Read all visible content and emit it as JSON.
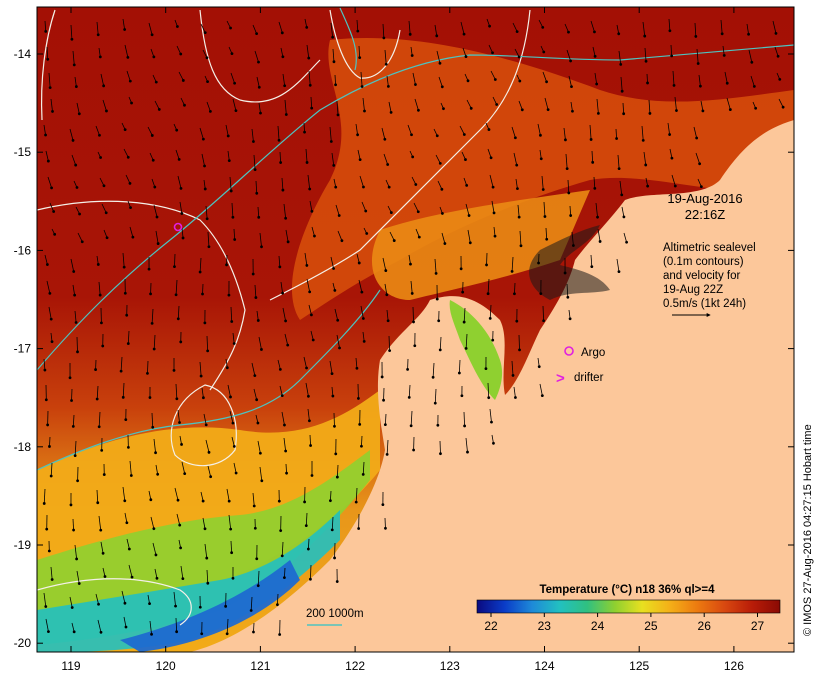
{
  "map": {
    "lon_ticks": [
      "119",
      "120",
      "121",
      "122",
      "123",
      "124",
      "125",
      "126"
    ],
    "lat_ticks": [
      "-14",
      "-15",
      "-16",
      "-17",
      "-18",
      "-19",
      "-20"
    ],
    "colors": {
      "land": "#fcc79a",
      "frame": "#000000",
      "contour": "#f4f0e8",
      "isobath": "#4ec3c0",
      "argo": "#e020e0",
      "drifter": "#e020e0",
      "sst_hot": "#a31005",
      "sst_warm": "#e05a10",
      "sst_mid": "#f2ab18",
      "sst_cool": "#8fd030",
      "sst_cold": "#1e8ad8"
    }
  },
  "annotations": {
    "date": "19-Aug-2016",
    "time": "22:16Z",
    "altimetry_lines": [
      "Altimetric sealevel",
      "(0.1m contours)",
      "and velocity for",
      "19-Aug 22Z",
      "0.5m/s (1kt 24h)"
    ],
    "argo_label": "Argo",
    "drifter_label": "drifter",
    "drifter_symbol": ">",
    "depth_label": "200  1000m",
    "copyright": "© IMOS 27-Aug-2016 04:27:15 Hobart time"
  },
  "colorbar": {
    "title": "Temperature (°C) n18 36% ql>=4",
    "ticks": [
      "22",
      "23",
      "24",
      "25",
      "26",
      "27"
    ],
    "stops": [
      "#0a0a80",
      "#0a3cc8",
      "#1e8ad8",
      "#22c0c0",
      "#30c080",
      "#8fd030",
      "#e8e020",
      "#f4b018",
      "#ec7a10",
      "#d84810",
      "#b81c08",
      "#8a0a04"
    ]
  }
}
